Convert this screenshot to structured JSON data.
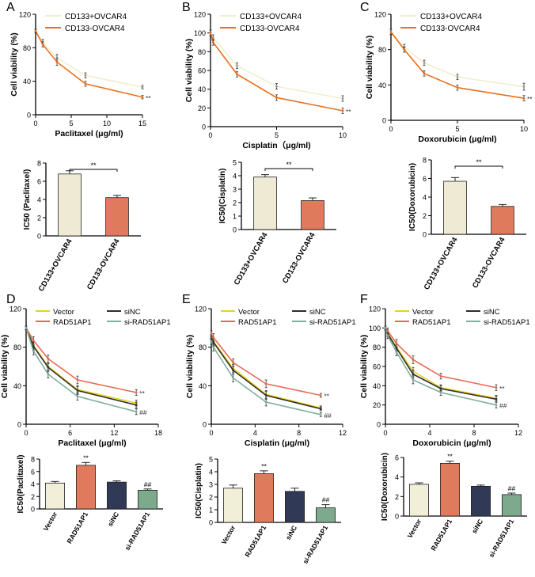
{
  "colors": {
    "cd133_pos": "#F0EDD0",
    "cd133_neg": "#E8701E",
    "bar_pos": "#EFEAD3",
    "bar_neg": "#E07A5C",
    "vector": "#E8D21E",
    "rad51ap1": "#E86A55",
    "sinc": "#2E2E2E",
    "si_rad51ap1": "#7FAF9A",
    "bar_vector": "#F2EFD9",
    "bar_rad51ap1": "#E07A5C",
    "bar_sinc": "#303A56",
    "bar_si": "#7DAA8C"
  },
  "panels": [
    {
      "label": "A"
    },
    {
      "label": "B"
    },
    {
      "label": "C"
    },
    {
      "label": "D"
    },
    {
      "label": "E"
    },
    {
      "label": "F"
    }
  ],
  "chart_data": [
    {
      "type": "line",
      "panel": "A",
      "xlabel": "Paclitaxel (μg/ml)",
      "ylabel": "Cell viability (%)",
      "xlim": [
        0,
        15
      ],
      "ylim": [
        0,
        120
      ],
      "xticks": [
        "0",
        "5",
        "10",
        "15"
      ],
      "yticks": [
        "0",
        "40",
        "80",
        "120"
      ],
      "legend": [
        "CD133+OVCAR4",
        "CD133-OVCAR4"
      ],
      "series": [
        {
          "name": "CD133+OVCAR4",
          "x": [
            0,
            1,
            3,
            7,
            15
          ],
          "y": [
            100,
            87,
            68,
            47,
            33
          ],
          "err": [
            2,
            3,
            4,
            3,
            2
          ],
          "color_key": "cd133_pos"
        },
        {
          "name": "CD133-OVCAR4",
          "x": [
            0,
            1,
            3,
            7,
            15
          ],
          "y": [
            100,
            84,
            63,
            37,
            21
          ],
          "err": [
            2,
            3,
            4,
            3,
            2
          ],
          "color_key": "cd133_neg"
        }
      ],
      "annotations": [
        {
          "text": "**",
          "series": 1,
          "point": 4
        }
      ]
    },
    {
      "type": "line",
      "panel": "B",
      "xlabel": "Cisplatin（μg/ml)",
      "ylabel": "Cell viability (%)",
      "xlim": [
        0,
        10
      ],
      "ylim": [
        0,
        120
      ],
      "xticks": [
        "0",
        "5",
        "10"
      ],
      "yticks": [
        "0",
        "20",
        "40",
        "60",
        "80",
        "100",
        "120"
      ],
      "legend": [
        "CD133+OVCAR4",
        "CD133-OVCAR4"
      ],
      "series": [
        {
          "name": "CD133+OVCAR4",
          "x": [
            0,
            0.2,
            2,
            5,
            10
          ],
          "y": [
            100,
            95,
            65,
            43,
            30
          ],
          "err": [
            3,
            3,
            3,
            3,
            3
          ],
          "color_key": "cd133_pos"
        },
        {
          "name": "CD133-OVCAR4",
          "x": [
            0,
            0.2,
            2,
            5,
            10
          ],
          "y": [
            100,
            90,
            56,
            31,
            17
          ],
          "err": [
            3,
            3,
            3,
            3,
            3
          ],
          "color_key": "cd133_neg"
        }
      ],
      "annotations": [
        {
          "text": "**",
          "series": 1,
          "point": 4
        }
      ]
    },
    {
      "type": "line",
      "panel": "C",
      "xlabel": "Doxorubicin (μg/ml)",
      "ylabel": "Cell viability (%)",
      "xlim": [
        0,
        10
      ],
      "ylim": [
        0,
        120
      ],
      "xticks": [
        "0",
        "5",
        "10"
      ],
      "yticks": [
        "0",
        "40",
        "80",
        "120"
      ],
      "legend": [
        "CD133+OVCAR4",
        "CD133-OVCAR4"
      ],
      "series": [
        {
          "name": "CD133+OVCAR4",
          "x": [
            0,
            1,
            2.5,
            5,
            10
          ],
          "y": [
            100,
            83,
            65,
            49,
            38
          ],
          "err": [
            3,
            3,
            3,
            3,
            4
          ],
          "color_key": "cd133_pos"
        },
        {
          "name": "CD133-OVCAR4",
          "x": [
            0,
            1,
            2.5,
            5,
            10
          ],
          "y": [
            100,
            80,
            53,
            37,
            25
          ],
          "err": [
            3,
            3,
            3,
            3,
            3
          ],
          "color_key": "cd133_neg"
        }
      ],
      "annotations": [
        {
          "text": "**",
          "series": 1,
          "point": 4
        }
      ]
    },
    {
      "type": "bar",
      "panel": "A",
      "ylabel": "IC50 (Paclitaxel)",
      "ylim": [
        0,
        8
      ],
      "yticks": [
        "0",
        "2",
        "4",
        "6",
        "8"
      ],
      "categories": [
        "CD133+OVCAR4",
        "CD133-OVCAR4"
      ],
      "values": [
        6.8,
        4.2
      ],
      "err": [
        0.35,
        0.25
      ],
      "color_keys": [
        "bar_pos",
        "bar_neg"
      ],
      "significance": [
        {
          "from": 0,
          "to": 1,
          "text": "**"
        }
      ]
    },
    {
      "type": "bar",
      "panel": "B",
      "ylabel": "IC50(Cisplatin)",
      "ylim": [
        0,
        5
      ],
      "yticks": [
        "0",
        "1",
        "2",
        "3",
        "4",
        "5"
      ],
      "categories": [
        "CD133+OVCAR4",
        "CD133-OVCAR4"
      ],
      "values": [
        3.9,
        2.15
      ],
      "err": [
        0.18,
        0.2
      ],
      "color_keys": [
        "bar_pos",
        "bar_neg"
      ],
      "significance": [
        {
          "from": 0,
          "to": 1,
          "text": "**"
        }
      ]
    },
    {
      "type": "bar",
      "panel": "C",
      "ylabel": "IC50(Doxorubicin)",
      "ylim": [
        0,
        8
      ],
      "yticks": [
        "0",
        "2",
        "4",
        "6",
        "8"
      ],
      "categories": [
        "CD133+OVCAR4",
        "CD133-OVCAR4"
      ],
      "values": [
        5.7,
        3.0
      ],
      "err": [
        0.4,
        0.2
      ],
      "color_keys": [
        "bar_pos",
        "bar_neg"
      ],
      "significance": [
        {
          "from": 0,
          "to": 1,
          "text": "**"
        }
      ]
    },
    {
      "type": "line",
      "panel": "D",
      "xlabel": "Paclitaxel (μg/ml)",
      "ylabel": "Cell viability (%)",
      "xlim": [
        0,
        18
      ],
      "ylim": [
        0,
        120
      ],
      "xticks": [
        "0",
        "6",
        "12",
        "18"
      ],
      "yticks": [
        "0",
        "40",
        "80",
        "120"
      ],
      "legend": [
        "Vector",
        "siNC",
        "RAD51AP1",
        "si-RAD51AP1"
      ],
      "series": [
        {
          "name": "Vector",
          "x": [
            0,
            1,
            3,
            7,
            15
          ],
          "y": [
            100,
            82,
            60,
            36,
            22
          ],
          "err": [
            2,
            4,
            4,
            4,
            3
          ],
          "color_key": "vector"
        },
        {
          "name": "siNC",
          "x": [
            0,
            1,
            3,
            7,
            15
          ],
          "y": [
            100,
            81,
            59,
            35,
            20
          ],
          "err": [
            2,
            4,
            4,
            4,
            3
          ],
          "color_key": "sinc"
        },
        {
          "name": "RAD51AP1",
          "x": [
            0,
            1,
            3,
            7,
            15
          ],
          "y": [
            100,
            87,
            68,
            46,
            33
          ],
          "err": [
            2,
            4,
            4,
            4,
            3
          ],
          "color_key": "rad51ap1"
        },
        {
          "name": "si-RAD51AP1",
          "x": [
            0,
            1,
            3,
            7,
            15
          ],
          "y": [
            100,
            76,
            52,
            29,
            13
          ],
          "err": [
            2,
            4,
            4,
            4,
            3
          ],
          "color_key": "si_rad51ap1"
        }
      ],
      "annotations": [
        {
          "text": "**",
          "series": 2,
          "point": 4
        },
        {
          "text": "##",
          "series": 3,
          "point": 4
        }
      ]
    },
    {
      "type": "line",
      "panel": "E",
      "xlabel": "Cisplatin (μg/ml)",
      "ylabel": "Cell viability (%)",
      "xlim": [
        0,
        12
      ],
      "ylim": [
        0,
        120
      ],
      "xticks": [
        "0",
        "4",
        "8",
        "12"
      ],
      "yticks": [
        "0",
        "40",
        "80",
        "120"
      ],
      "legend": [
        "Vector",
        "siNC",
        "RAD51AP1",
        "si-RAD51AP1"
      ],
      "series": [
        {
          "name": "Vector",
          "x": [
            0,
            0.2,
            2,
            5,
            10
          ],
          "y": [
            90,
            86,
            58,
            31,
            17
          ],
          "err": [
            3,
            4,
            4,
            4,
            2
          ],
          "color_key": "vector"
        },
        {
          "name": "siNC",
          "x": [
            0,
            0.2,
            2,
            5,
            10
          ],
          "y": [
            89,
            85,
            56,
            30,
            16
          ],
          "err": [
            3,
            4,
            4,
            4,
            2
          ],
          "color_key": "sinc"
        },
        {
          "name": "RAD51AP1",
          "x": [
            0,
            0.2,
            2,
            5,
            10
          ],
          "y": [
            94,
            90,
            64,
            42,
            30
          ],
          "err": [
            3,
            4,
            4,
            4,
            2
          ],
          "color_key": "rad51ap1"
        },
        {
          "name": "si-RAD51AP1",
          "x": [
            0,
            0.2,
            2,
            5,
            10
          ],
          "y": [
            86,
            80,
            48,
            23,
            10
          ],
          "err": [
            3,
            4,
            4,
            4,
            2
          ],
          "color_key": "si_rad51ap1"
        }
      ],
      "annotations": [
        {
          "text": "**",
          "series": 2,
          "point": 4
        },
        {
          "text": "##",
          "series": 3,
          "point": 4
        }
      ]
    },
    {
      "type": "line",
      "panel": "F",
      "xlabel": "Doxorubicin (μg/ml)",
      "ylabel": "Cell viability (%)",
      "xlim": [
        0,
        12
      ],
      "ylim": [
        0,
        120
      ],
      "xticks": [
        "0",
        "4",
        "8",
        "12"
      ],
      "yticks": [
        "0",
        "20",
        "40",
        "60",
        "80",
        "100",
        "120"
      ],
      "legend": [
        "Vector",
        "siNC",
        "RAD51AP1",
        "si-RAD51AP1"
      ],
      "series": [
        {
          "name": "Vector",
          "x": [
            0,
            0.2,
            1,
            2.5,
            5,
            10
          ],
          "y": [
            100,
            95,
            80,
            55,
            38,
            27
          ],
          "err": [
            2,
            3,
            4,
            4,
            3,
            3
          ],
          "color_key": "vector"
        },
        {
          "name": "siNC",
          "x": [
            0,
            0.2,
            1,
            2.5,
            5,
            10
          ],
          "y": [
            100,
            94,
            79,
            52,
            37,
            26
          ],
          "err": [
            2,
            3,
            4,
            4,
            3,
            3
          ],
          "color_key": "sinc"
        },
        {
          "name": "RAD51AP1",
          "x": [
            0,
            0.2,
            1,
            2.5,
            5,
            10
          ],
          "y": [
            100,
            97,
            84,
            67,
            50,
            38
          ],
          "err": [
            2,
            3,
            4,
            4,
            3,
            3
          ],
          "color_key": "rad51ap1"
        },
        {
          "name": "si-RAD51AP1",
          "x": [
            0,
            0.2,
            1,
            2.5,
            5,
            10
          ],
          "y": [
            100,
            92,
            75,
            46,
            33,
            20
          ],
          "err": [
            2,
            3,
            4,
            4,
            3,
            3
          ],
          "color_key": "si_rad51ap1"
        }
      ],
      "annotations": [
        {
          "text": "**",
          "series": 2,
          "point": 5
        },
        {
          "text": "##",
          "series": 3,
          "point": 5
        }
      ]
    },
    {
      "type": "bar",
      "panel": "D",
      "ylabel": "IC50(Paclitaxel)",
      "ylim": [
        0,
        8
      ],
      "yticks": [
        "0",
        "2",
        "4",
        "6",
        "8"
      ],
      "categories": [
        "Vector",
        "RAD51AP1",
        "siNC",
        "si-RAD51AP1"
      ],
      "values": [
        4.15,
        7.0,
        4.3,
        3.0
      ],
      "err": [
        0.25,
        0.45,
        0.2,
        0.2
      ],
      "color_keys": [
        "bar_vector",
        "bar_rad51ap1",
        "bar_sinc",
        "bar_si"
      ],
      "marks": [
        {
          "index": 1,
          "text": "**"
        },
        {
          "index": 3,
          "text": "##"
        }
      ]
    },
    {
      "type": "bar",
      "panel": "E",
      "ylabel": "IC50(Cisplatin)",
      "ylim": [
        0,
        5
      ],
      "yticks": [
        "0",
        "1",
        "2",
        "3",
        "4",
        "5"
      ],
      "categories": [
        "Vector",
        "RAD51AP1",
        "siNC",
        "si-RAD51AP1"
      ],
      "values": [
        2.7,
        3.85,
        2.45,
        1.15
      ],
      "err": [
        0.25,
        0.22,
        0.25,
        0.25
      ],
      "color_keys": [
        "bar_vector",
        "bar_rad51ap1",
        "bar_sinc",
        "bar_si"
      ],
      "marks": [
        {
          "index": 1,
          "text": "**"
        },
        {
          "index": 3,
          "text": "##"
        }
      ]
    },
    {
      "type": "bar",
      "panel": "F",
      "ylabel": "IC50(Doxorubicin)",
      "ylim": [
        0,
        6
      ],
      "yticks": [
        "0",
        "2",
        "4",
        "6"
      ],
      "categories": [
        "Vector",
        "RAD51AP1",
        "siNC",
        "si-RAD51AP1"
      ],
      "values": [
        3.25,
        5.4,
        3.05,
        2.2
      ],
      "err": [
        0.15,
        0.22,
        0.12,
        0.15
      ],
      "color_keys": [
        "bar_vector",
        "bar_rad51ap1",
        "bar_sinc",
        "bar_si"
      ],
      "marks": [
        {
          "index": 1,
          "text": "**"
        },
        {
          "index": 3,
          "text": "##"
        }
      ]
    }
  ]
}
